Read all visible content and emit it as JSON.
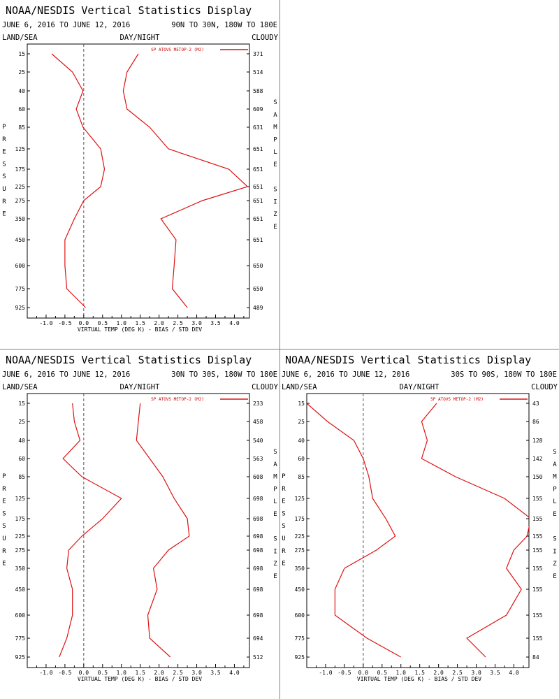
{
  "colors": {
    "series": "#dd1111",
    "axis": "#000000",
    "zero_line": "#555555",
    "separator": "#808080"
  },
  "chart_data": [
    {
      "type": "line",
      "title": "NOAA/NESDIS Vertical Statistics Display",
      "date_range": "JUNE 6, 2016 TO JUNE 12, 2016",
      "region": "90N TO 30N, 180W TO 180E",
      "left_header": "LAND/SEA",
      "center_header": "DAY/NIGHT",
      "right_header": "CLOUDY",
      "legend": "SP ATOVS METOP-2 (M2)",
      "legend_position": "top-right",
      "xlabel": "VIRTUAL TEMP (DEG K) - BIAS / STD DEV",
      "ylabel": "PRESSURE",
      "right_label": "SAMPLE SIZE",
      "xlim": [
        -1.5,
        4.4
      ],
      "x_ticks": [
        "-1.0",
        "-0.5",
        "0.0",
        "0.5",
        "1.0",
        "1.5",
        "2.0",
        "2.5",
        "3.0",
        "3.5",
        "4.0"
      ],
      "pressure_levels": [
        "15",
        "25",
        "40",
        "60",
        "85",
        "125",
        "175",
        "225",
        "275",
        "350",
        "450",
        "600",
        "775",
        "925"
      ],
      "sample_size": [
        "371",
        "514",
        "588",
        "609",
        "631",
        "651",
        "651",
        "651",
        "651",
        "651",
        "651",
        "650",
        "650",
        "489"
      ],
      "bias": [
        -0.85,
        -0.3,
        -0.02,
        -0.2,
        -0.02,
        0.45,
        0.55,
        0.45,
        0.0,
        -0.25,
        -0.5,
        -0.5,
        -0.45,
        0.05
      ],
      "std_dev": [
        1.45,
        1.15,
        1.05,
        1.15,
        1.75,
        2.25,
        3.85,
        4.35,
        3.15,
        2.05,
        2.45,
        2.4,
        2.35,
        2.75
      ]
    },
    {
      "type": "line",
      "title": "NOAA/NESDIS Vertical Statistics Display",
      "date_range": "JUNE 6, 2016 TO JUNE 12, 2016",
      "region": "30N TO 30S, 180W TO 180E",
      "left_header": "LAND/SEA",
      "center_header": "DAY/NIGHT",
      "right_header": "CLOUDY",
      "legend": "SP ATOVS METOP-2 (M2)",
      "legend_position": "top-right",
      "xlabel": "VIRTUAL TEMP (DEG K) - BIAS / STD DEV",
      "ylabel": "PRESSURE",
      "right_label": "SAMPLE SIZE",
      "xlim": [
        -1.5,
        4.4
      ],
      "x_ticks": [
        "-1.0",
        "-0.5",
        "0.0",
        "0.5",
        "1.0",
        "1.5",
        "2.0",
        "2.5",
        "3.0",
        "3.5",
        "4.0"
      ],
      "pressure_levels": [
        "15",
        "25",
        "40",
        "60",
        "85",
        "125",
        "175",
        "225",
        "275",
        "350",
        "450",
        "600",
        "775",
        "925"
      ],
      "sample_size": [
        "233",
        "458",
        "540",
        "563",
        "608",
        "698",
        "698",
        "698",
        "698",
        "698",
        "698",
        "698",
        "694",
        "512"
      ],
      "bias": [
        -0.3,
        -0.25,
        -0.1,
        -0.55,
        -0.05,
        1.0,
        0.5,
        -0.05,
        -0.4,
        -0.45,
        -0.3,
        -0.3,
        -0.45,
        -0.65
      ],
      "std_dev": [
        1.5,
        1.45,
        1.4,
        1.75,
        2.1,
        2.4,
        2.75,
        2.8,
        2.25,
        1.85,
        1.95,
        1.7,
        1.75,
        2.3
      ]
    },
    {
      "type": "line",
      "title": "NOAA/NESDIS Vertical Statistics Display",
      "date_range": "JUNE 6, 2016 TO JUNE 12, 2016",
      "region": "30S TO 90S, 180W TO 180E",
      "left_header": "LAND/SEA",
      "center_header": "DAY/NIGHT",
      "right_header": "CLOUDY",
      "legend": "SP ATOVS METOP-2 (M2)",
      "legend_position": "top-right",
      "xlabel": "VIRTUAL TEMP (DEG K) - BIAS / STD DEV",
      "ylabel": "PRESSURE",
      "right_label": "SAMPLE SIZE",
      "xlim": [
        -1.5,
        4.4
      ],
      "x_ticks": [
        "-1.0",
        "-0.5",
        "0.0",
        "0.5",
        "1.0",
        "1.5",
        "2.0",
        "2.5",
        "3.0",
        "3.5",
        "4.0"
      ],
      "pressure_levels": [
        "15",
        "25",
        "40",
        "60",
        "85",
        "125",
        "175",
        "225",
        "275",
        "350",
        "450",
        "600",
        "775",
        "925"
      ],
      "sample_size": [
        "43",
        "86",
        "128",
        "142",
        "150",
        "155",
        "155",
        "155",
        "155",
        "155",
        "155",
        "155",
        "155",
        "84"
      ],
      "bias": [
        -1.5,
        -0.95,
        -0.25,
        0.0,
        0.15,
        0.25,
        0.6,
        0.85,
        0.35,
        -0.5,
        -0.75,
        -0.75,
        0.1,
        1.0
      ],
      "std_dev": [
        1.95,
        1.55,
        1.7,
        1.55,
        2.45,
        3.75,
        4.45,
        4.35,
        4.0,
        3.8,
        4.2,
        3.8,
        2.75,
        3.25
      ]
    }
  ]
}
